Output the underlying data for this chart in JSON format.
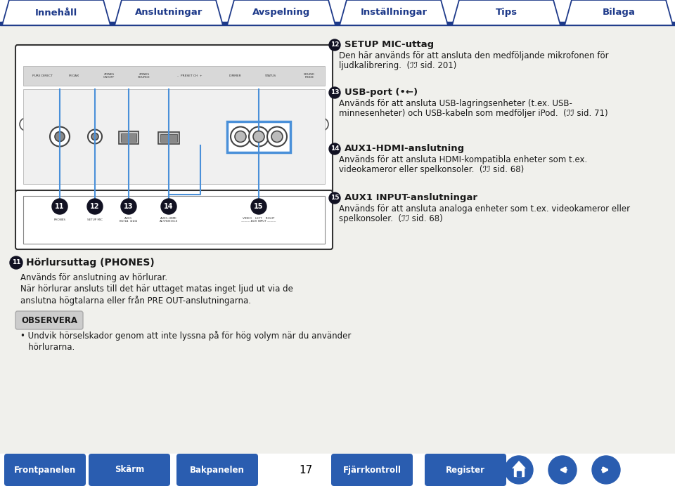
{
  "bg_color": "#f0f0ec",
  "tab_labels": [
    "Innehåll",
    "Anslutningar",
    "Avspelning",
    "Inställningar",
    "Tips",
    "Bilaga"
  ],
  "tab_color": "#ffffff",
  "tab_border_color": "#1e3a8a",
  "tab_bar_color": "#1e3a8a",
  "bottom_buttons": [
    "Frontpanelen",
    "Skärm",
    "Bakpanelen",
    "Fjärrkontroll",
    "Register"
  ],
  "btn_color": "#2a5db0",
  "page_num": "17",
  "right_entries": [
    {
      "num": "12",
      "title": "SETUP MIC-uttag",
      "lines": [
        "Den här används för att ansluta den medföljande mikrofonen för",
        "ljudkalibrering.  (ℐℐ sid. 201)"
      ]
    },
    {
      "num": "13",
      "title": "USB-port (•←)",
      "lines": [
        "Används för att ansluta USB-lagringsenheter (t.ex. USB-",
        "minnesenheter) och USB-kabeln som medföljer iPod.  (ℐℐ sid. 71)"
      ]
    },
    {
      "num": "14",
      "title": "AUX1-HDMI-anslutning",
      "lines": [
        "Används för att ansluta HDMI-kompatibla enheter som t.ex.",
        "videokameror eller spelkonsoler.  (ℐℐ sid. 68)"
      ]
    },
    {
      "num": "15",
      "title": "AUX1 INPUT-anslutningar",
      "lines": [
        "Används för att ansluta analoga enheter som t.ex. videokameror eller",
        "spelkonsoler.  (ℐℐ sid. 68)"
      ]
    }
  ],
  "bottom_section": {
    "num": "11",
    "title": "Hörlursuttag (PHONES)",
    "lines": [
      "Används för anslutning av hörlurar.",
      "När hörlurar ansluts till det här uttaget matas inget ljud ut via de",
      "anslutna högtalarna eller från PRE OUT-anslutningarna."
    ],
    "obs_label": "OBSERVERA",
    "obs_lines": [
      "Undvik hörselskador genom att inte lyssna på för hög volym när du använder",
      "hörlurarna."
    ]
  },
  "accent": "#1e3a8a",
  "dark": "#1a1a1a",
  "blue_line": "#4a90d9",
  "num_circle_color": "#111122"
}
